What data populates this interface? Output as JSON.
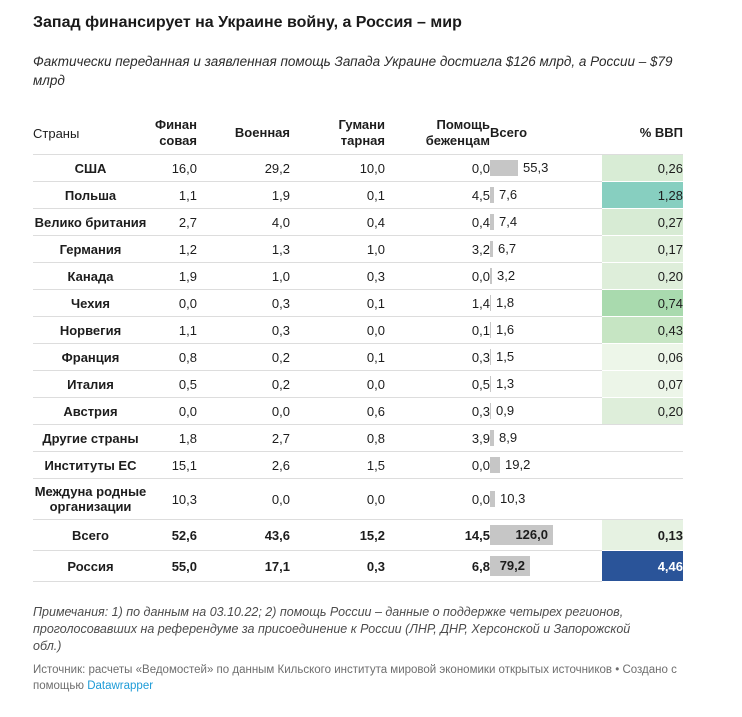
{
  "chart_data": {
    "type": "table",
    "title": "Запад финансирует на Украине войну, а Россия – мир",
    "subtitle": "Фактически переданная и заявленная помощь Запада Украине достигла $126 млрд, а России – $79 млрд",
    "columns": [
      "Страны",
      "Финан\nсовая",
      "Военная",
      "Гумани\nтарная",
      "Помощь\nбеженцам",
      "Всего",
      "% ВВП"
    ],
    "bar_max": 126.0,
    "rows": [
      {
        "name": "США",
        "fin": "16,0",
        "mil": "29,2",
        "hum": "10,0",
        "ref": "0,0",
        "total": "55,3",
        "total_value": 55.3,
        "gdp": "0,26",
        "gdp_bg": "#d8ecd5",
        "bold": false,
        "label_inside": false
      },
      {
        "name": "Польша",
        "fin": "1,1",
        "mil": "1,9",
        "hum": "0,1",
        "ref": "4,5",
        "total": "7,6",
        "total_value": 7.6,
        "gdp": "1,28",
        "gdp_bg": "#87cfc0",
        "bold": false,
        "label_inside": false
      },
      {
        "name": "Велико\nбритания",
        "fin": "2,7",
        "mil": "4,0",
        "hum": "0,4",
        "ref": "0,4",
        "total": "7,4",
        "total_value": 7.4,
        "gdp": "0,27",
        "gdp_bg": "#d7ebd4",
        "bold": false,
        "label_inside": false
      },
      {
        "name": "Германия",
        "fin": "1,2",
        "mil": "1,3",
        "hum": "1,0",
        "ref": "3,2",
        "total": "6,7",
        "total_value": 6.7,
        "gdp": "0,17",
        "gdp_bg": "#e1f0dd",
        "bold": false,
        "label_inside": false
      },
      {
        "name": "Канада",
        "fin": "1,9",
        "mil": "1,0",
        "hum": "0,3",
        "ref": "0,0",
        "total": "3,2",
        "total_value": 3.2,
        "gdp": "0,20",
        "gdp_bg": "#deeeda",
        "bold": false,
        "label_inside": false
      },
      {
        "name": "Чехия",
        "fin": "0,0",
        "mil": "0,3",
        "hum": "0,1",
        "ref": "1,4",
        "total": "1,8",
        "total_value": 1.8,
        "gdp": "0,74",
        "gdp_bg": "#a9daae",
        "bold": false,
        "label_inside": false
      },
      {
        "name": "Норвегия",
        "fin": "1,1",
        "mil": "0,3",
        "hum": "0,0",
        "ref": "0,1",
        "total": "1,6",
        "total_value": 1.6,
        "gdp": "0,43",
        "gdp_bg": "#c6e5c3",
        "bold": false,
        "label_inside": false
      },
      {
        "name": "Франция",
        "fin": "0,8",
        "mil": "0,2",
        "hum": "0,1",
        "ref": "0,3",
        "total": "1,5",
        "total_value": 1.5,
        "gdp": "0,06",
        "gdp_bg": "#edf6e9",
        "bold": false,
        "label_inside": false
      },
      {
        "name": "Италия",
        "fin": "0,5",
        "mil": "0,2",
        "hum": "0,0",
        "ref": "0,5",
        "total": "1,3",
        "total_value": 1.3,
        "gdp": "0,07",
        "gdp_bg": "#ecf5e8",
        "bold": false,
        "label_inside": false
      },
      {
        "name": "Австрия",
        "fin": "0,0",
        "mil": "0,0",
        "hum": "0,6",
        "ref": "0,3",
        "total": "0,9",
        "total_value": 0.9,
        "gdp": "0,20",
        "gdp_bg": "#deeeda",
        "bold": false,
        "label_inside": false
      },
      {
        "name": "Другие\nстраны",
        "fin": "1,8",
        "mil": "2,7",
        "hum": "0,8",
        "ref": "3,9",
        "total": "8,9",
        "total_value": 8.9,
        "gdp": "",
        "gdp_bg": null,
        "bold": false,
        "label_inside": false
      },
      {
        "name": "Институты\nЕС",
        "fin": "15,1",
        "mil": "2,6",
        "hum": "1,5",
        "ref": "0,0",
        "total": "19,2",
        "total_value": 19.2,
        "gdp": "",
        "gdp_bg": null,
        "bold": false,
        "label_inside": false
      },
      {
        "name": "Междуна\nродные\nорганизации",
        "fin": "10,3",
        "mil": "0,0",
        "hum": "0,0",
        "ref": "0,0",
        "total": "10,3",
        "total_value": 10.3,
        "gdp": "",
        "gdp_bg": null,
        "bold": false,
        "label_inside": false
      },
      {
        "name": "Всего",
        "fin": "52,6",
        "mil": "43,6",
        "hum": "15,2",
        "ref": "14,5",
        "total": "126,0",
        "total_value": 126.0,
        "gdp": "0,13",
        "gdp_bg": "#e6f2e2",
        "bold": true,
        "label_inside": true
      },
      {
        "name": "Россия",
        "fin": "55,0",
        "mil": "17,1",
        "hum": "0,3",
        "ref": "6,8",
        "total": "79,2",
        "total_value": 79.2,
        "gdp": "4,46",
        "gdp_bg": "#2a5499",
        "gdp_fg": "#ffffff",
        "bold": true,
        "label_inside": true
      }
    ],
    "notes": "Примечания: 1) по данным на 03.10.22; 2) помощь России – данные о поддержке четырех регионов, проголосовавших на референдуме за присоединение к России (ЛНР, ДНР, Херсонской и Запорожской обл.)",
    "source_prefix": "Источник: расчеты «Ведомостей» по данным Кильского института мировой экономики открытых источников • Создано с помощью ",
    "source_link_label": "Datawrapper"
  },
  "colors": {
    "bar": "#c6c6c6",
    "header_rule": "#1a1a1a",
    "row_border": "#dddddd",
    "link": "#1d9bd7",
    "russia_gdp_cell": "#2a5499",
    "poland_gdp_cell": "#87cfc0"
  }
}
